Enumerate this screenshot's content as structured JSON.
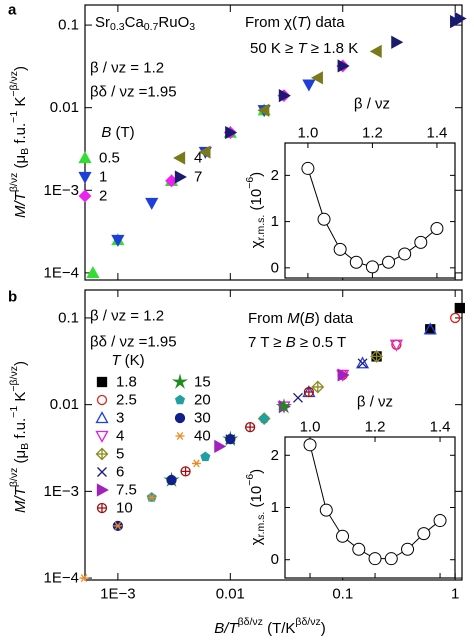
{
  "chart_data": [
    {
      "type": "scatter",
      "panel_label": "a",
      "xscale": "log",
      "yscale": "log",
      "xlim": [
        0.00051,
        1.15
      ],
      "ylim": [
        8.2e-05,
        0.175
      ],
      "xticks": [
        0.001,
        0.01,
        0.1,
        1
      ],
      "show_xtick_labels": false,
      "yticks": [
        0.1,
        0.01,
        {
          "value": 0.001,
          "label": "1E−3"
        },
        {
          "value": 0.0001,
          "label": "1E−4"
        }
      ],
      "ylabel": [
        {
          "text": "M/T",
          "style": "italic"
        },
        {
          "text": "β/νz",
          "style": "sup"
        },
        {
          "text": " (μ"
        },
        {
          "text": "B",
          "style": "sub"
        },
        {
          "text": " f.u."
        },
        {
          "text": "−1",
          "style": "sup"
        },
        {
          "text": " K"
        },
        {
          "text": "−β/νz",
          "style": "sup"
        },
        {
          "text": ")"
        }
      ],
      "annotations": [
        [
          {
            "text": "Sr"
          },
          {
            "text": "0.3",
            "style": "sub"
          },
          {
            "text": "Ca"
          },
          {
            "text": "0.7",
            "style": "sub"
          },
          {
            "text": "RuO"
          },
          {
            "text": "3",
            "style": "sub"
          }
        ],
        "β / νz = 1.2",
        "βδ / νz =1.95",
        [
          {
            "text": "From χ("
          },
          {
            "text": "T",
            "style": "italic"
          },
          {
            "text": ") data"
          }
        ],
        [
          {
            "text": "50 K ≥ "
          },
          {
            "text": "T",
            "style": "italic"
          },
          {
            "text": " ≥ 1.8 K"
          }
        ]
      ],
      "legend_title": [
        {
          "text": "B",
          "style": "italic"
        },
        {
          "text": " (T)"
        }
      ],
      "series": [
        {
          "name": "0.5",
          "color": "#33dd33",
          "marker": "triangle-up",
          "filled": true,
          "x": [
            0.0006,
            0.001,
            0.003,
            0.01,
            0.02
          ],
          "values": [
            0.0001,
            0.00025,
            0.0013,
            0.005,
            0.0093
          ]
        },
        {
          "name": "1",
          "color": "#1f3fd8",
          "marker": "triangle-down",
          "filled": true,
          "x": [
            0.001,
            0.002,
            0.006,
            0.02,
            0.05
          ],
          "values": [
            0.00025,
            0.0007,
            0.0029,
            0.0093,
            0.019
          ]
        },
        {
          "name": "2",
          "color": "#ee22ee",
          "marker": "diamond",
          "filled": true,
          "x": [
            0.003,
            0.01,
            0.03,
            0.1
          ],
          "values": [
            0.0013,
            0.005,
            0.014,
            0.032
          ]
        },
        {
          "name": "4",
          "color": "#7a7a1a",
          "marker": "triangle-left",
          "filled": true,
          "x": [
            0.006,
            0.02,
            0.06,
            0.2
          ],
          "values": [
            0.0029,
            0.0093,
            0.023,
            0.048
          ]
        },
        {
          "name": "7",
          "color": "#1a1a6e",
          "marker": "triangle-right",
          "filled": true,
          "x": [
            0.01,
            0.03,
            0.1,
            0.3,
            1,
            1.1
          ],
          "values": [
            0.005,
            0.014,
            0.032,
            0.062,
            0.11,
            0.12
          ]
        }
      ]
    },
    {
      "type": "line",
      "xlim": [
        0.929,
        1.456
      ],
      "ylim": [
        -0.22,
        2.7
      ],
      "xticks": [
        {
          "value": 1,
          "label": "1.0"
        },
        1.2,
        1.4
      ],
      "yticks": [
        0,
        1,
        2
      ],
      "xaxis_position": "top",
      "xlabel": "β / νz",
      "ylabel": [
        {
          "text": "χ"
        },
        {
          "text": "r.m.s.",
          "style": "sub"
        },
        {
          "text": " (10"
        },
        {
          "text": "−6",
          "style": "sup"
        },
        {
          "text": ")"
        }
      ],
      "color": "#000000",
      "marker": "circle",
      "x": [
        1,
        1.05,
        1.1,
        1.15,
        1.2,
        1.25,
        1.3,
        1.35,
        1.4
      ],
      "values": [
        2.15,
        1.05,
        0.4,
        0.12,
        0.02,
        0.12,
        0.3,
        0.55,
        0.85
      ]
    },
    {
      "type": "scatter",
      "panel_label": "b",
      "xscale": "log",
      "yscale": "log",
      "xlim": [
        0.00051,
        1.15
      ],
      "ylim": [
        9.5e-05,
        0.21
      ],
      "xticks": [
        {
          "value": 0.001,
          "label": "1E−3"
        },
        0.01,
        0.1,
        1
      ],
      "show_xtick_labels": true,
      "yticks": [
        0.1,
        0.01,
        {
          "value": 0.001,
          "label": "1E−3"
        },
        {
          "value": 0.0001,
          "label": "1E−4"
        }
      ],
      "xlabel": [
        {
          "text": "B/T",
          "style": "italic"
        },
        {
          "text": "βδ/νz",
          "style": "sup"
        },
        {
          "text": " (T/K"
        },
        {
          "text": "βδ/νz",
          "style": "sup"
        },
        {
          "text": ")"
        }
      ],
      "ylabel": [
        {
          "text": "M/T",
          "style": "italic"
        },
        {
          "text": "β/νz",
          "style": "sup"
        },
        {
          "text": " (μ"
        },
        {
          "text": "B",
          "style": "sub"
        },
        {
          "text": " f.u."
        },
        {
          "text": "−1",
          "style": "sup"
        },
        {
          "text": " K"
        },
        {
          "text": "−β/νz",
          "style": "sup"
        },
        {
          "text": ")"
        }
      ],
      "annotations": [
        "β / νz = 1.2",
        "βδ / νz =1.95",
        [
          {
            "text": "From "
          },
          {
            "text": "M",
            "style": "italic"
          },
          {
            "text": "("
          },
          {
            "text": "B",
            "style": "italic"
          },
          {
            "text": ") data"
          }
        ],
        [
          {
            "text": "7 T ≥ "
          },
          {
            "text": "B",
            "style": "italic"
          },
          {
            "text": " ≥ 0.5 T"
          }
        ]
      ],
      "legend_title": [
        {
          "text": "T",
          "style": "italic"
        },
        {
          "text": " (K)"
        }
      ],
      "series": [
        {
          "name": "1.8",
          "color": "#000000",
          "marker": "square",
          "filled": true,
          "x": [
            0.2,
            0.6,
            1.1
          ],
          "values": [
            0.036,
            0.074,
            0.13
          ]
        },
        {
          "name": "2.5",
          "color": "#e02020",
          "marker": "circle",
          "filled": false,
          "x": [
            0.1,
            0.3,
            1
          ],
          "values": [
            0.022,
            0.049,
            0.1
          ]
        },
        {
          "name": "3",
          "color": "#2040e0",
          "marker": "triangle-up",
          "filled": false,
          "x": [
            0.05,
            0.15,
            0.6
          ],
          "values": [
            0.014,
            0.03,
            0.074
          ]
        },
        {
          "name": "4",
          "color": "#e020e0",
          "marker": "triangle-down",
          "filled": false,
          "x": [
            0.03,
            0.1,
            0.3
          ],
          "values": [
            0.0095,
            0.022,
            0.049
          ]
        },
        {
          "name": "5",
          "color": "#8a8a20",
          "marker": "diamond-cross",
          "filled": false,
          "x": [
            0.02,
            0.06,
            0.2
          ],
          "values": [
            0.0069,
            0.016,
            0.036
          ]
        },
        {
          "name": "6",
          "color": "#1a1a80",
          "marker": "x",
          "filled": false,
          "x": [
            0.01,
            0.04,
            0.15
          ],
          "values": [
            0.004,
            0.012,
            0.03
          ]
        },
        {
          "name": "7.5",
          "color": "#a020c0",
          "marker": "triangle-right",
          "filled": true,
          "x": [
            0.008,
            0.03,
            0.1
          ],
          "values": [
            0.0033,
            0.0095,
            0.022
          ]
        },
        {
          "name": "10",
          "color": "#a01010",
          "marker": "circle-cross",
          "filled": false,
          "x": [
            0.004,
            0.015,
            0.05
          ],
          "values": [
            0.0017,
            0.0055,
            0.014
          ]
        },
        {
          "name": "15",
          "color": "#208a20",
          "marker": "star",
          "filled": true,
          "x": [
            0.003,
            0.01,
            0.03
          ],
          "values": [
            0.00135,
            0.004,
            0.0095
          ]
        },
        {
          "name": "20",
          "color": "#20a0a0",
          "marker": "pentagon",
          "filled": true,
          "x": [
            0.002,
            0.006,
            0.02
          ],
          "values": [
            0.00085,
            0.0025,
            0.0069
          ]
        },
        {
          "name": "30",
          "color": "#10208a",
          "marker": "circle",
          "filled": true,
          "x": [
            0.001,
            0.003,
            0.01
          ],
          "values": [
            0.0004,
            0.00135,
            0.004
          ]
        },
        {
          "name": "40",
          "color": "#f08a20",
          "marker": "asterisk",
          "filled": false,
          "x": [
            0.0005,
            0.001,
            0.002,
            0.005
          ],
          "values": [
            0.0001,
            0.0004,
            0.00085,
            0.0021
          ]
        }
      ]
    },
    {
      "type": "line",
      "xlim": [
        0.923,
        1.446
      ],
      "ylim": [
        -0.35,
        2.35
      ],
      "xticks": [
        {
          "value": 1,
          "label": "1.0"
        },
        1.2,
        1.4
      ],
      "yticks": [
        0,
        1,
        2
      ],
      "xaxis_position": "top",
      "xlabel": "β / νz",
      "ylabel": [
        {
          "text": "χ"
        },
        {
          "text": "r.m.s.",
          "style": "sub"
        },
        {
          "text": " (10"
        },
        {
          "text": "−6",
          "style": "sup"
        },
        {
          "text": ")"
        }
      ],
      "color": "#000000",
      "marker": "circle",
      "x": [
        1,
        1.05,
        1.1,
        1.15,
        1.2,
        1.25,
        1.3,
        1.35,
        1.4
      ],
      "values": [
        2.2,
        0.95,
        0.45,
        0.2,
        0.02,
        0.02,
        0.2,
        0.5,
        0.75
      ]
    }
  ]
}
